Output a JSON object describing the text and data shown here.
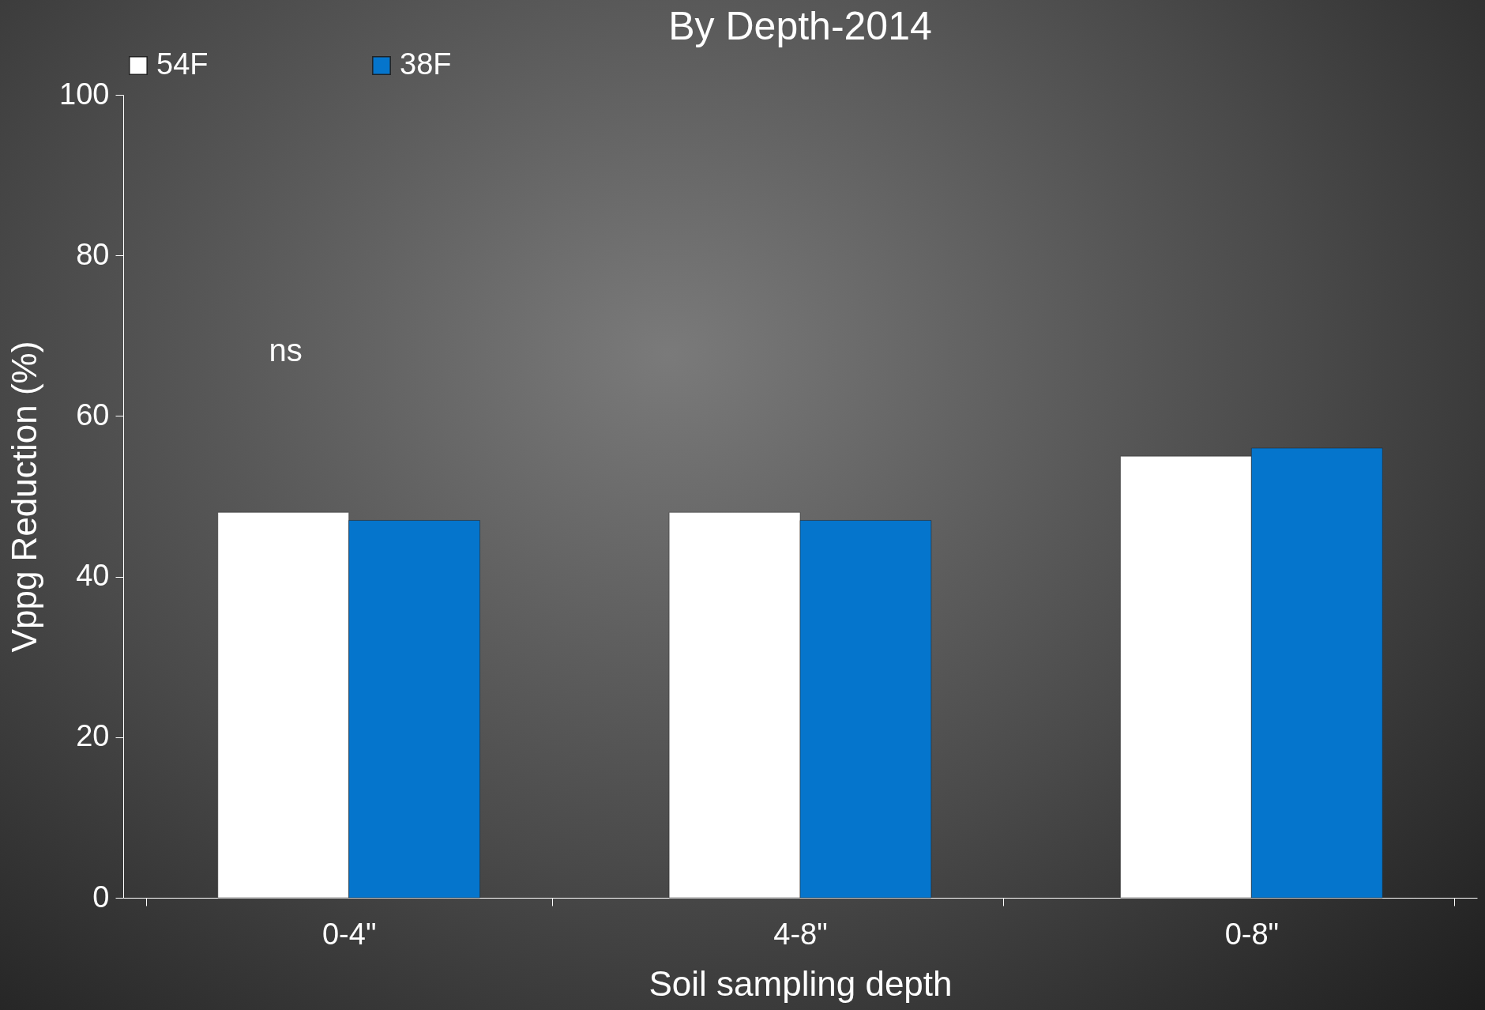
{
  "chart_data": {
    "type": "bar",
    "title": "By Depth-2014",
    "xlabel": "Soil sampling depth",
    "ylabel": "Vppg Reduction (%)",
    "categories": [
      "0-4\"",
      "4-8\"",
      "0-8\""
    ],
    "series": [
      {
        "name": "54F",
        "color": "#ffffff",
        "values": [
          48,
          48,
          55
        ]
      },
      {
        "name": "38F",
        "color": "#0575cc",
        "values": [
          47,
          47,
          56
        ]
      }
    ],
    "ylim": [
      0,
      100
    ],
    "yticks": [
      0,
      20,
      40,
      60,
      80,
      100
    ],
    "grid": false,
    "legend": "top",
    "annotations": [
      "ns"
    ]
  }
}
